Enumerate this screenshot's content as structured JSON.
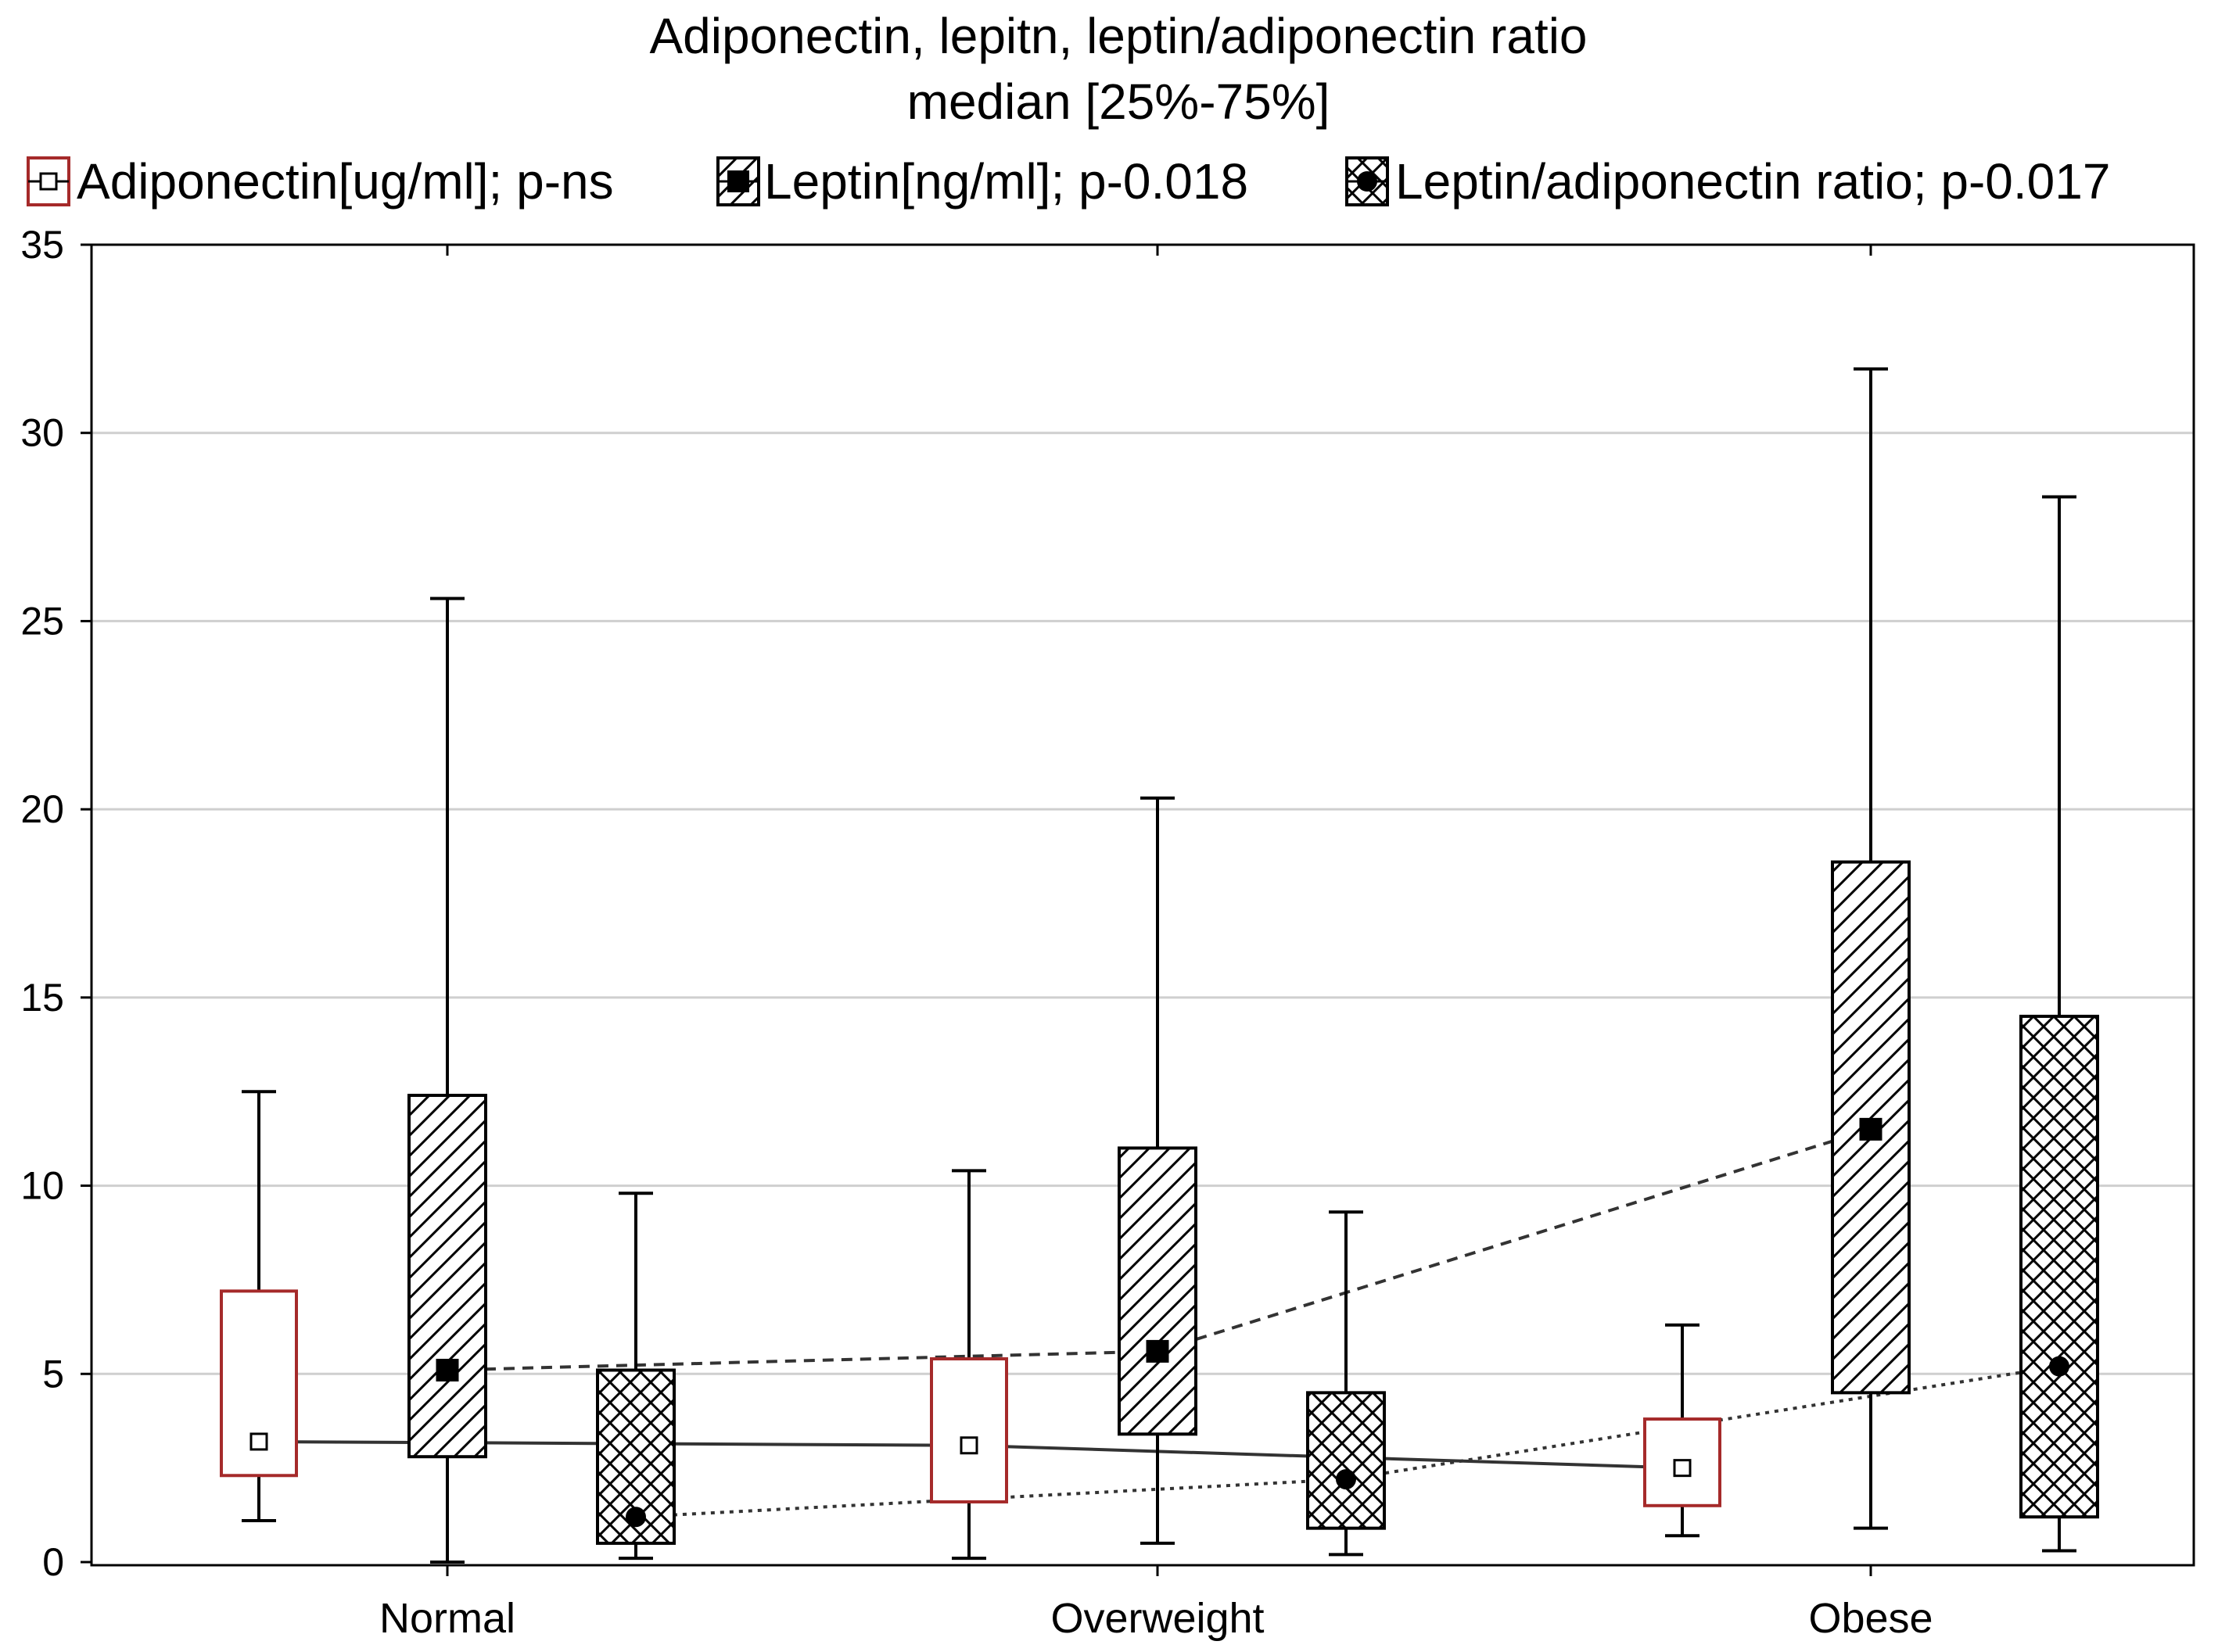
{
  "chart_data": {
    "type": "boxplot",
    "title": "Adiponectin, lepitn, leptin/adiponectin ratio",
    "subtitle": "median [25%-75%]",
    "xlabel": "",
    "ylabel": "",
    "ylim": [
      0,
      35
    ],
    "yticks": [
      0,
      5,
      10,
      15,
      20,
      25,
      30,
      35
    ],
    "grid": true,
    "legend_position": "top",
    "categories": [
      "Normal",
      "Overweight",
      "Obese"
    ],
    "series": [
      {
        "name": "Adiponectin[ug/ml]; p-ns",
        "key": "adiponectin",
        "box_color": "#a52a2a",
        "fill": "none",
        "marker": "open-square",
        "line": "solid",
        "median": [
          3.2,
          3.1,
          2.5
        ],
        "q1": [
          2.3,
          1.6,
          1.5
        ],
        "q3": [
          7.2,
          5.4,
          3.8
        ],
        "min": [
          1.1,
          0.1,
          0.7
        ],
        "max": [
          12.5,
          10.4,
          6.3
        ]
      },
      {
        "name": "Leptin[ng/ml]; p-0.018",
        "key": "leptin",
        "box_color": "#000000",
        "fill": "diagonal-hatch",
        "marker": "filled-square",
        "line": "dashed",
        "median": [
          5.1,
          5.6,
          11.5
        ],
        "q1": [
          2.8,
          3.4,
          4.5
        ],
        "q3": [
          12.4,
          11.0,
          18.6
        ],
        "min": [
          0.0,
          0.5,
          0.9
        ],
        "max": [
          25.6,
          20.3,
          31.7
        ]
      },
      {
        "name": "Leptin/adiponectin ratio; p-0.017",
        "key": "ratio",
        "box_color": "#000000",
        "fill": "cross-hatch",
        "marker": "filled-circle",
        "line": "dotted",
        "median": [
          1.2,
          2.2,
          5.2
        ],
        "q1": [
          0.5,
          0.9,
          1.2
        ],
        "q3": [
          5.1,
          4.5,
          14.5
        ],
        "min": [
          0.1,
          0.2,
          0.3
        ],
        "max": [
          9.8,
          9.3,
          28.3
        ]
      }
    ]
  }
}
